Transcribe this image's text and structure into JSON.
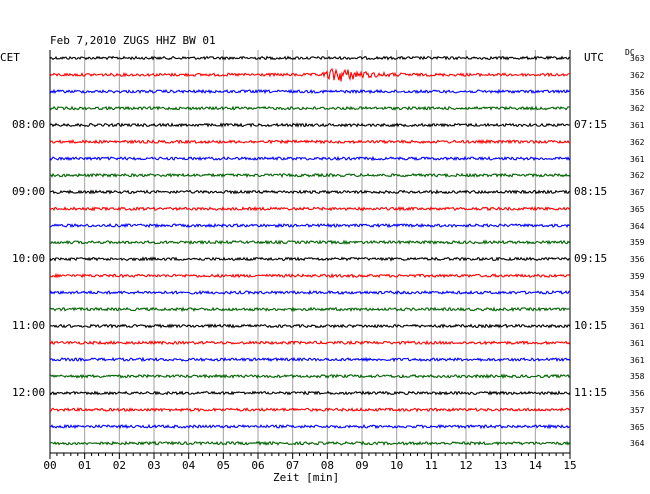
{
  "header": {
    "title": "Feb 7,2010   ZUGS HHZ BW 01",
    "left_zone": "CET",
    "right_zone": "UTC",
    "dc_label": "DC"
  },
  "chart_data": {
    "type": "line",
    "title": "Feb 7,2010   ZUGS HHZ BW 01",
    "xlabel": "Zeit [min]",
    "x_ticks": [
      "00",
      "01",
      "02",
      "03",
      "04",
      "05",
      "06",
      "07",
      "08",
      "09",
      "10",
      "11",
      "12",
      "13",
      "14",
      "15"
    ],
    "xlim": [
      0,
      15
    ],
    "grid": true,
    "trace_interval_min": 15,
    "left_time_labels": [
      "08:00",
      "09:00",
      "10:00",
      "11:00",
      "12:00"
    ],
    "right_time_labels": [
      "07:15",
      "08:15",
      "09:15",
      "10:15",
      "11:15"
    ],
    "trace_colors": [
      "#000000",
      "#ff0000",
      "#0000ff",
      "#006400"
    ],
    "dc_values": [
      "363",
      "362",
      "356",
      "362",
      "361",
      "362",
      "361",
      "362",
      "367",
      "365",
      "364",
      "359",
      "356",
      "359",
      "354",
      "359",
      "361",
      "361",
      "361",
      "358",
      "356",
      "357",
      "365",
      "364"
    ],
    "events": [
      {
        "trace_index": 1,
        "start_min": 7.8,
        "end_min": 10.5,
        "peak_min": 8.3,
        "relative_amplitude": 7
      }
    ]
  }
}
